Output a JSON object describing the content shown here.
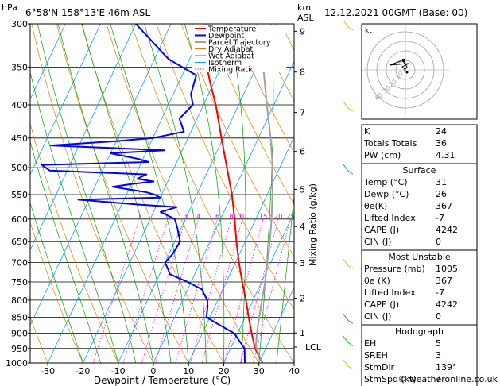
{
  "header": {
    "left_unit": "hPa",
    "location": "6°58'N 158°13'E 46m ASL",
    "right_unit_top": "km",
    "right_unit_bottom": "ASL",
    "datetime": "12.12.2021 00GMT (Base: 00)"
  },
  "footer": {
    "credit": "© weatheronline.co.uk"
  },
  "hodograph": {
    "unit_label": "kt",
    "ring_labels": [
      "10",
      "20",
      "30",
      "40"
    ]
  },
  "colors": {
    "temperature": "#ff0000",
    "dewpoint": "#0000ff",
    "parcel": "#a0a0a0",
    "dry_adiabat": "#e08000",
    "wet_adiabat": "#00a000",
    "isotherm": "#00a0ff",
    "mixing_ratio": "#ff00ff"
  },
  "chart_data": {
    "type": "line",
    "xlabel": "Dewpoint / Temperature (°C)",
    "ylabel_left": "hPa",
    "ylabel_right": "Mixing Ratio (g/kg)",
    "xlim": [
      -35,
      40
    ],
    "ylim_hpa": [
      1000,
      300
    ],
    "x_ticks": [
      -30,
      -20,
      -10,
      0,
      10,
      20,
      30,
      40
    ],
    "pressure_ticks": [
      300,
      350,
      400,
      450,
      500,
      550,
      600,
      650,
      700,
      750,
      800,
      850,
      900,
      950,
      1000
    ],
    "height_ticks_km": [
      {
        "label": "1",
        "hpa": 899
      },
      {
        "label": "2",
        "hpa": 795
      },
      {
        "label": "3",
        "hpa": 701
      },
      {
        "label": "4",
        "hpa": 616
      },
      {
        "label": "5",
        "hpa": 540
      },
      {
        "label": "6",
        "hpa": 472
      },
      {
        "label": "7",
        "hpa": 411
      },
      {
        "label": "8",
        "hpa": 356
      },
      {
        "label": "9",
        "hpa": 308
      }
    ],
    "lcl": {
      "label": "LCL",
      "hpa": 945
    },
    "mixing_ratio_labels": [
      "1",
      "2",
      "3",
      "4",
      "6",
      "8",
      "10",
      "15",
      "20",
      "25"
    ],
    "mixing_ratio_values": [
      1,
      2,
      3,
      4,
      6,
      8,
      10,
      15,
      20,
      25
    ],
    "legend": [
      "Temperature",
      "Dewpoint",
      "Parcel Trajectory",
      "Dry Adiabat",
      "Wet Adiabat",
      "Isotherm",
      "Mixing Ratio"
    ],
    "series": [
      {
        "name": "Temperature",
        "points": [
          [
            1000,
            31
          ],
          [
            950,
            27
          ],
          [
            900,
            24
          ],
          [
            850,
            21
          ],
          [
            800,
            18
          ],
          [
            750,
            14.5
          ],
          [
            700,
            11
          ],
          [
            650,
            7.5
          ],
          [
            600,
            4
          ],
          [
            550,
            0
          ],
          [
            500,
            -5
          ],
          [
            450,
            -10.5
          ],
          [
            400,
            -16.5
          ],
          [
            370,
            -21
          ],
          [
            350,
            -24
          ]
        ]
      },
      {
        "name": "Dewpoint",
        "points": [
          [
            1000,
            26
          ],
          [
            950,
            24
          ],
          [
            900,
            19
          ],
          [
            870,
            13
          ],
          [
            850,
            9
          ],
          [
            820,
            8
          ],
          [
            800,
            7
          ],
          [
            770,
            4
          ],
          [
            750,
            -1
          ],
          [
            730,
            -7
          ],
          [
            700,
            -10
          ],
          [
            680,
            -9
          ],
          [
            650,
            -8.5
          ],
          [
            620,
            -11
          ],
          [
            600,
            -13
          ],
          [
            585,
            -18
          ],
          [
            575,
            -14
          ],
          [
            570,
            -25
          ],
          [
            560,
            -43
          ],
          [
            556,
            -20
          ],
          [
            550,
            -22
          ],
          [
            545,
            -25
          ],
          [
            540,
            -30
          ],
          [
            535,
            -35
          ],
          [
            530,
            -30
          ],
          [
            525,
            -24
          ],
          [
            520,
            -29
          ],
          [
            512,
            -27
          ],
          [
            505,
            -55
          ],
          [
            495,
            -58
          ],
          [
            490,
            -28
          ],
          [
            485,
            -31
          ],
          [
            475,
            -40
          ],
          [
            470,
            -25
          ],
          [
            462,
            -58
          ],
          [
            455,
            -40
          ],
          [
            450,
            -30
          ],
          [
            440,
            -22
          ],
          [
            420,
            -25
          ],
          [
            400,
            -23
          ],
          [
            385,
            -25
          ],
          [
            360,
            -26
          ],
          [
            340,
            -36
          ],
          [
            300,
            -50
          ]
        ]
      },
      {
        "name": "Parcel Trajectory",
        "points": [
          [
            1000,
            31
          ],
          [
            945,
            27
          ],
          [
            900,
            25.5
          ],
          [
            850,
            24
          ],
          [
            800,
            22.5
          ],
          [
            750,
            21
          ],
          [
            700,
            19
          ],
          [
            650,
            17
          ],
          [
            600,
            14.5
          ],
          [
            550,
            11.5
          ],
          [
            500,
            8
          ],
          [
            450,
            3.5
          ],
          [
            400,
            -2
          ],
          [
            350,
            -8
          ]
        ]
      }
    ]
  },
  "indices": {
    "rows": [
      {
        "label": "K",
        "value": "24"
      },
      {
        "label": "Totals Totals",
        "value": "36"
      },
      {
        "label": "PW (cm)",
        "value": "4.31"
      }
    ]
  },
  "surface": {
    "title": "Surface",
    "rows": [
      {
        "label": "Temp (°C)",
        "value": "31"
      },
      {
        "label": "Dewp (°C)",
        "value": "26"
      },
      {
        "label": "θe(K)",
        "value": "367"
      },
      {
        "label": "Lifted Index",
        "value": "-7"
      },
      {
        "label": "CAPE (J)",
        "value": "4242"
      },
      {
        "label": "CIN (J)",
        "value": "0"
      }
    ]
  },
  "most_unstable": {
    "title": "Most Unstable",
    "rows": [
      {
        "label": "Pressure (mb)",
        "value": "1005"
      },
      {
        "label": "θe (K)",
        "value": "367"
      },
      {
        "label": "Lifted Index",
        "value": "-7"
      },
      {
        "label": "CAPE (J)",
        "value": "4242"
      },
      {
        "label": "CIN (J)",
        "value": "0"
      }
    ]
  },
  "hodograph_table": {
    "title": "Hodograph",
    "rows": [
      {
        "label": "EH",
        "value": "5"
      },
      {
        "label": "SREH",
        "value": "3"
      },
      {
        "label": "StmDir",
        "value": "139°"
      },
      {
        "label": "StmSpd (kt)",
        "value": "7"
      }
    ]
  }
}
